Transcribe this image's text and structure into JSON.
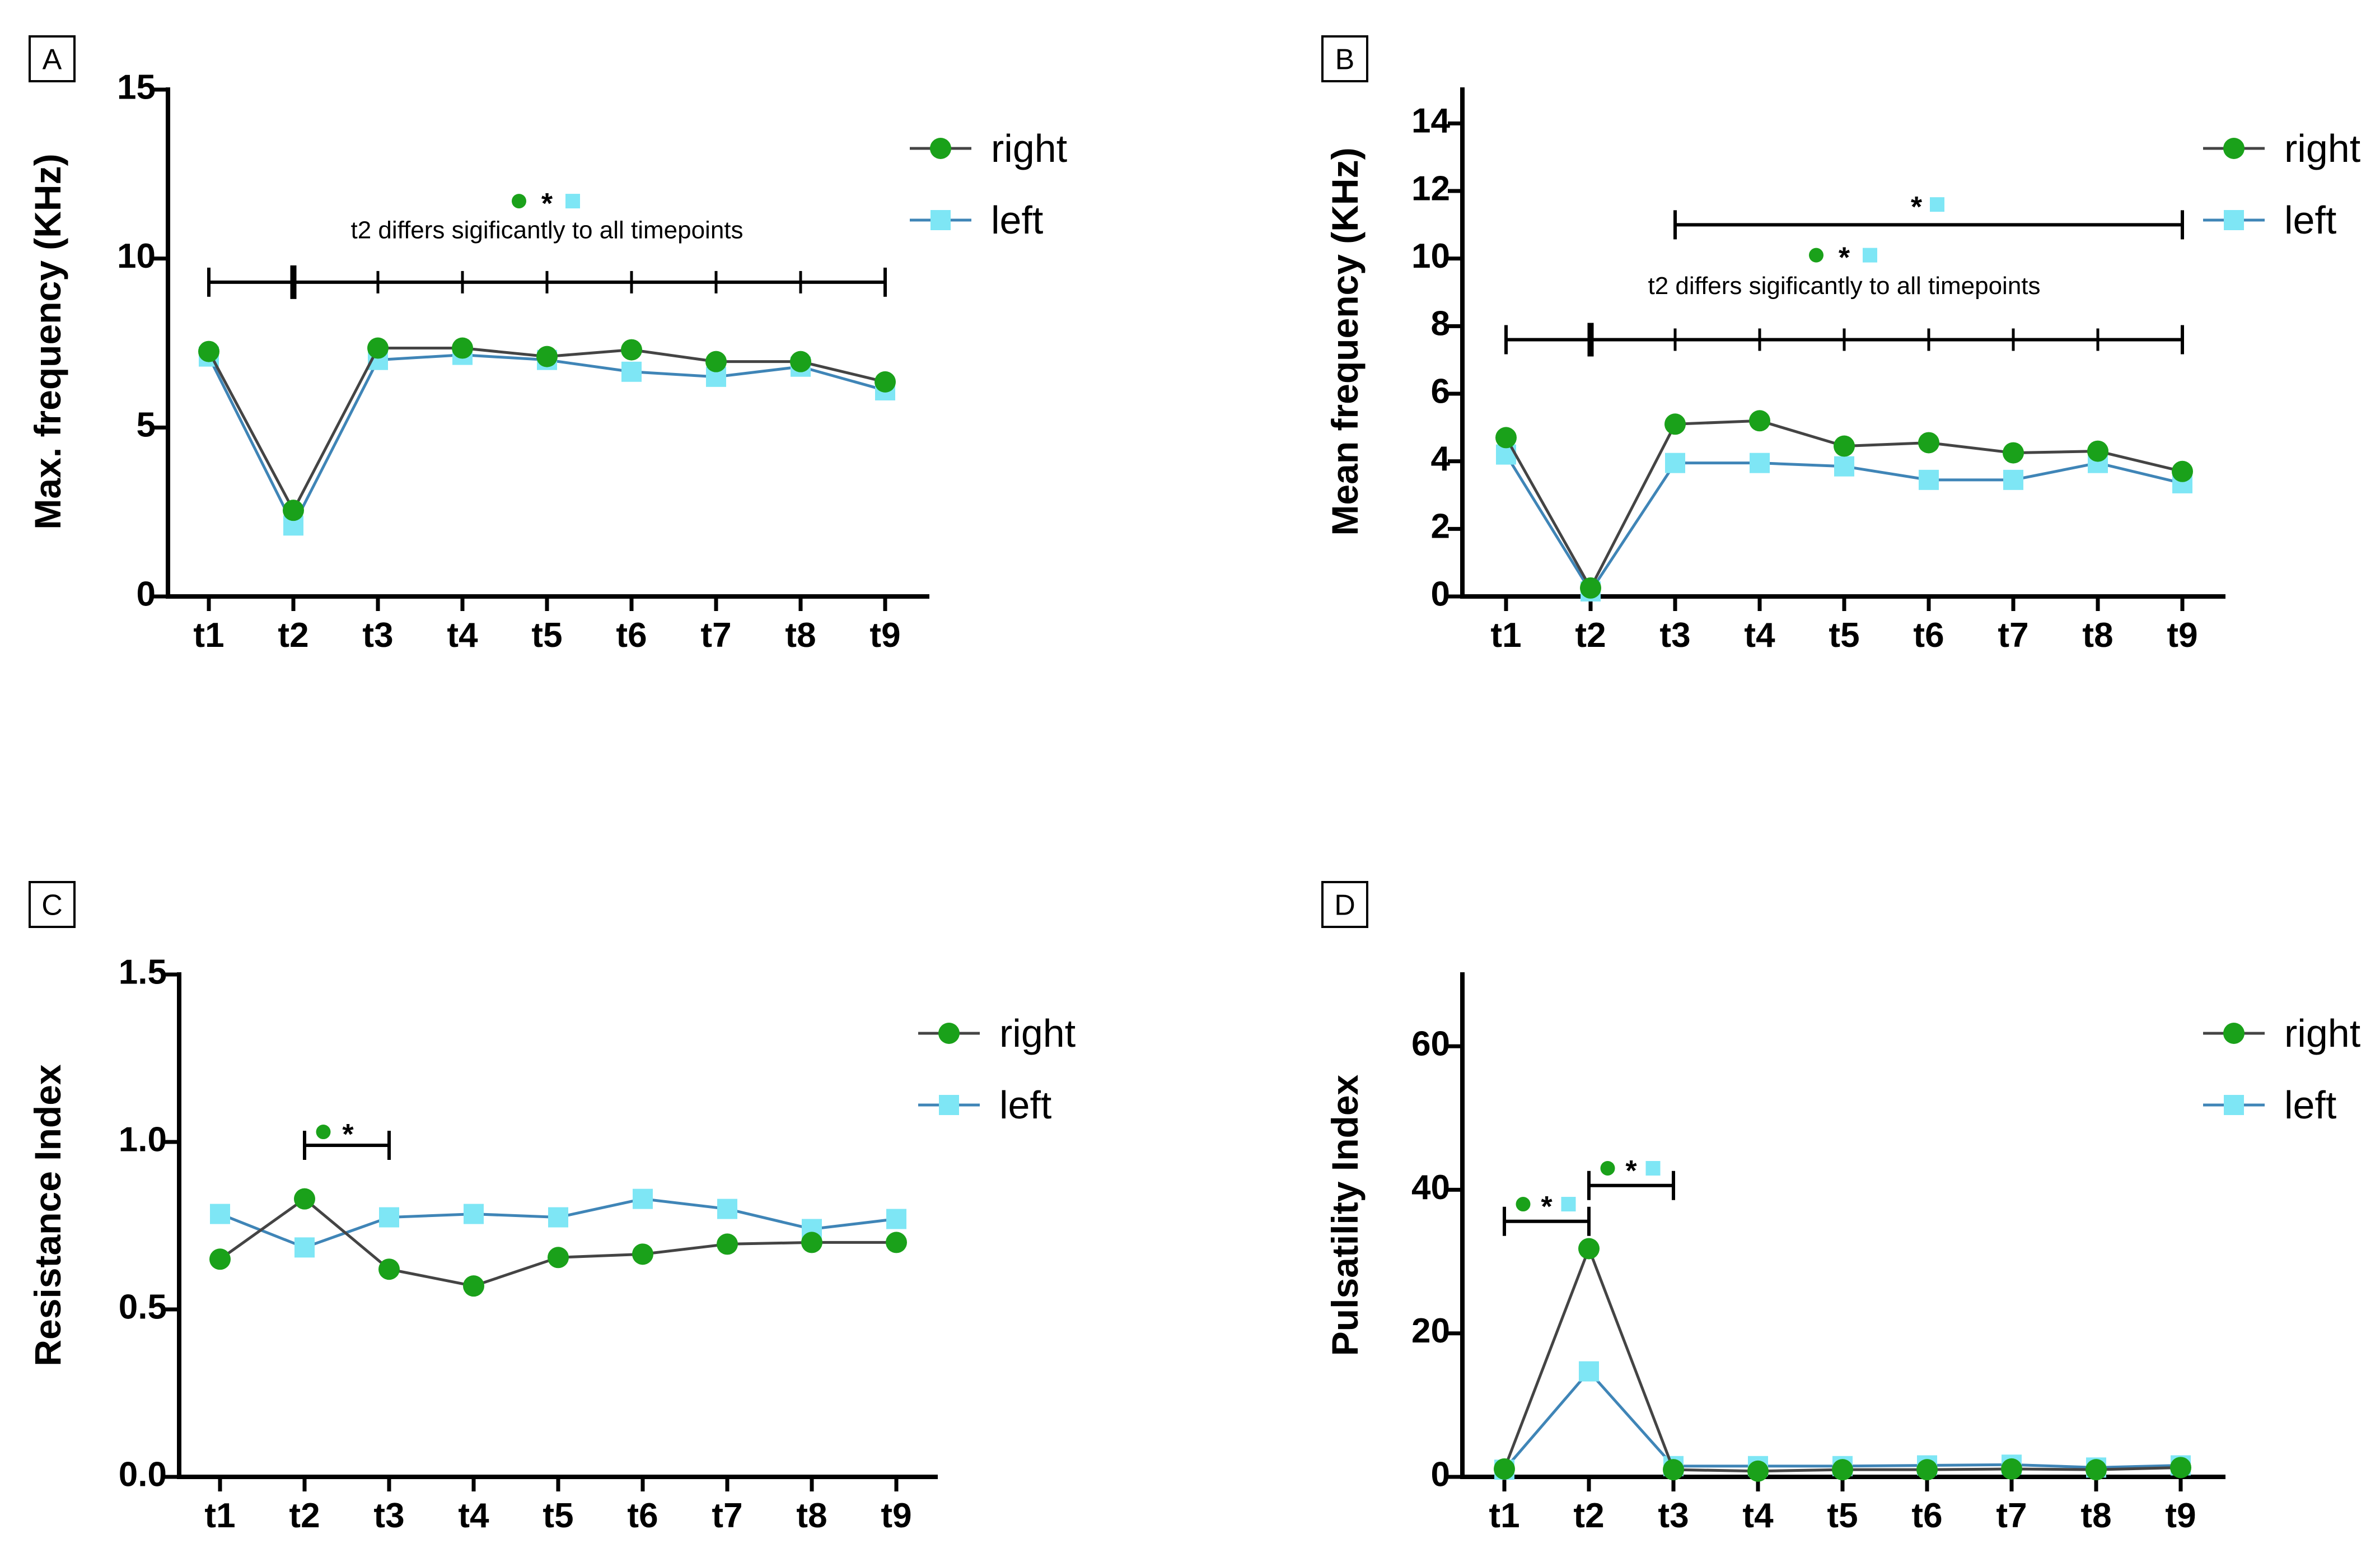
{
  "colors": {
    "right_marker": "#1aa11a",
    "right_line": "#444444",
    "left_marker": "#7ee6f5",
    "left_line": "#3f85b7"
  },
  "chart_data": [
    {
      "panel": "A",
      "type": "line",
      "ylabel": "Max. frequency (KHz)",
      "categories": [
        "t1",
        "t2",
        "t3",
        "t4",
        "t5",
        "t6",
        "t7",
        "t8",
        "t9"
      ],
      "ylim": [
        0,
        15
      ],
      "yticks": [
        0,
        5,
        10,
        15
      ],
      "series": [
        {
          "name": "right",
          "values": [
            7.25,
            2.55,
            7.35,
            7.35,
            7.1,
            7.3,
            6.95,
            6.95,
            6.35
          ]
        },
        {
          "name": "left",
          "values": [
            7.1,
            2.1,
            7.0,
            7.15,
            7.0,
            6.65,
            6.5,
            6.8,
            6.1
          ]
        }
      ],
      "annotations": [
        {
          "kind": "bracket",
          "from": 0,
          "to": 8,
          "y": 9.3,
          "major_tick": 1,
          "label": "t2 differs sigificantly to all timepoints",
          "marker_y": 11.7,
          "label_y": 10.6
        }
      ]
    },
    {
      "panel": "B",
      "type": "line",
      "ylabel": "Mean frequency (KHz)",
      "categories": [
        "t1",
        "t2",
        "t3",
        "t4",
        "t5",
        "t6",
        "t7",
        "t8",
        "t9"
      ],
      "ylim": [
        0,
        15
      ],
      "yticks": [
        0,
        2,
        4,
        6,
        8,
        10,
        12,
        14
      ],
      "series": [
        {
          "name": "right",
          "values": [
            4.7,
            0.25,
            5.1,
            5.2,
            4.45,
            4.55,
            4.25,
            4.3,
            3.7
          ]
        },
        {
          "name": "left",
          "values": [
            4.2,
            0.15,
            3.95,
            3.95,
            3.85,
            3.45,
            3.45,
            3.95,
            3.35
          ]
        }
      ],
      "annotations": [
        {
          "kind": "bracket",
          "from": 2,
          "to": 8,
          "y": 11.0,
          "marker": "left",
          "marker_y": 11.6
        },
        {
          "kind": "bracket",
          "from": 0,
          "to": 8,
          "y": 7.6,
          "major_tick": 1,
          "label": "t2 differs sigificantly to all timepoints",
          "marker_y": 10.1,
          "label_y": 8.95
        }
      ]
    },
    {
      "panel": "C",
      "type": "line",
      "ylabel": "Resistance Index",
      "categories": [
        "t1",
        "t2",
        "t3",
        "t4",
        "t5",
        "t6",
        "t7",
        "t8",
        "t9"
      ],
      "ylim": [
        0,
        1.5
      ],
      "yticks": [
        "0.0",
        "0.5",
        "1.0",
        "1.5"
      ],
      "series": [
        {
          "name": "right",
          "values": [
            0.65,
            0.83,
            0.62,
            0.57,
            0.655,
            0.665,
            0.695,
            0.7,
            0.7
          ]
        },
        {
          "name": "left",
          "values": [
            0.785,
            0.685,
            0.775,
            0.785,
            0.775,
            0.83,
            0.8,
            0.74,
            0.77
          ]
        }
      ],
      "annotations": [
        {
          "kind": "bracket",
          "from": 1,
          "to": 2,
          "y": 0.99,
          "marker": "right",
          "marker_y": 1.03
        }
      ]
    },
    {
      "panel": "D",
      "type": "line",
      "ylabel": "Pulsatility Index",
      "categories": [
        "t1",
        "t2",
        "t3",
        "t4",
        "t5",
        "t6",
        "t7",
        "t8",
        "t9"
      ],
      "ylim": [
        0,
        70
      ],
      "yticks": [
        0,
        20,
        40,
        60
      ],
      "series": [
        {
          "name": "right",
          "values": [
            1.1,
            31.8,
            1.0,
            0.8,
            1.0,
            1.0,
            1.1,
            1.0,
            1.3
          ]
        },
        {
          "name": "left",
          "values": [
            1.0,
            14.7,
            1.5,
            1.5,
            1.5,
            1.6,
            1.7,
            1.3,
            1.6
          ]
        }
      ],
      "annotations": [
        {
          "kind": "bracket",
          "from": 0,
          "to": 1,
          "y": 35.6,
          "marker": "both",
          "marker_y": 38.0
        },
        {
          "kind": "bracket",
          "from": 1,
          "to": 2,
          "y": 40.6,
          "marker": "both",
          "marker_y": 43.0
        }
      ]
    }
  ],
  "legend": {
    "right": "right",
    "left": "left"
  },
  "significance_symbol": "*"
}
